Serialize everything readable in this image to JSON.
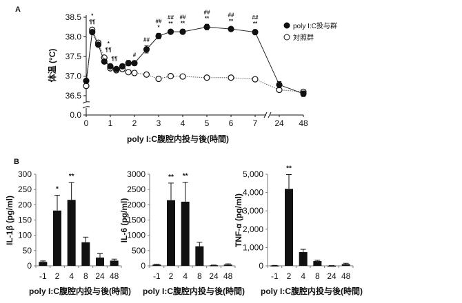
{
  "panel_labels": [
    "A",
    "B"
  ],
  "chart_data": [
    {
      "type": "line",
      "panel": "A",
      "ylabel": "体温 (°C)",
      "xlabel": "poly I:C腹腔内投与後(時間)",
      "ylim": [
        36.5,
        38.5
      ],
      "y_ticks": [
        "38.5",
        "38.0",
        "37.5",
        "37.0",
        "36.5",
        "0.0"
      ],
      "x_ticks": [
        "0",
        "1",
        "2",
        "3",
        "4",
        "5",
        "6",
        "7",
        "24",
        "48"
      ],
      "y_axis_break": true,
      "x_axis_break_between": [
        "7",
        "24"
      ],
      "legend_position": "top-right",
      "grid": false,
      "x": [
        0,
        0.25,
        0.5,
        0.75,
        1,
        1.25,
        1.5,
        1.75,
        2,
        2.5,
        3,
        3.5,
        4,
        5,
        6,
        7,
        24,
        48
      ],
      "series": [
        {
          "name": "poly I:C投与群",
          "marker": "filled-circle",
          "line": "solid",
          "values": [
            36.88,
            38.12,
            37.8,
            37.37,
            37.25,
            37.18,
            37.25,
            37.33,
            37.33,
            37.68,
            38.02,
            38.13,
            38.13,
            38.25,
            38.2,
            38.12,
            36.78,
            36.55
          ],
          "errors": [
            0.03,
            0.05,
            0.05,
            0.04,
            0.04,
            0.05,
            0.06,
            0.07,
            0.06,
            0.09,
            0.07,
            0.05,
            0.06,
            0.07,
            0.05,
            0.06,
            0.08,
            0.07
          ]
        },
        {
          "name": "対照群",
          "marker": "open-circle",
          "line": "dotted",
          "values": [
            36.75,
            38.18,
            37.85,
            37.47,
            37.2,
            37.15,
            37.18,
            37.1,
            37.08,
            37.04,
            36.93,
            37.0,
            36.99,
            36.96,
            36.96,
            36.92,
            36.65,
            36.6
          ],
          "errors": [
            0.03,
            0.05,
            0.05,
            0.05,
            0.05,
            0.05,
            0.06,
            0.05,
            0.04,
            0.04,
            0.05,
            0.04,
            0.05,
            0.04,
            0.04,
            0.03,
            0.04,
            0.05
          ]
        }
      ],
      "annotations": [
        {
          "x": 0.25,
          "lines": [
            "*",
            "¶¶"
          ]
        },
        {
          "x": 0.75,
          "lines": [
            "*",
            "¶¶"
          ]
        },
        {
          "x": 1,
          "lines": [
            "¶¶"
          ]
        },
        {
          "x": 2,
          "lines": [
            "#"
          ]
        },
        {
          "x": 2.5,
          "lines": [
            "##"
          ]
        },
        {
          "x": 3,
          "lines": [
            "##",
            "*"
          ]
        },
        {
          "x": 3.5,
          "lines": [
            "##",
            "**"
          ]
        },
        {
          "x": 4,
          "lines": [
            "##",
            "**"
          ]
        },
        {
          "x": 5,
          "lines": [
            "##",
            "**"
          ]
        },
        {
          "x": 6,
          "lines": [
            "##",
            "**"
          ]
        },
        {
          "x": 7,
          "lines": [
            "##",
            "**"
          ]
        }
      ]
    },
    {
      "type": "bar",
      "panel": "B",
      "ylabel": "IL-1β (pg/ml)",
      "xlabel": "poly I:C腹腔内投与後(時間)",
      "categories": [
        "-1",
        "2",
        "4",
        "8",
        "24",
        "48"
      ],
      "values": [
        13,
        181,
        216,
        77,
        27,
        17
      ],
      "errors": [
        3,
        50,
        57,
        17,
        13,
        5
      ],
      "significance": [
        "",
        "*",
        "**",
        "",
        "",
        ""
      ],
      "ylim": [
        0,
        300
      ],
      "y_ticks": [
        "0",
        "50",
        "100",
        "150",
        "200",
        "250",
        "300"
      ]
    },
    {
      "type": "bar",
      "panel": "B",
      "ylabel": "IL-6 (pg/ml)",
      "xlabel": "poly I:C腹腔内投与後(時間)",
      "categories": [
        "-1",
        "2",
        "4",
        "8",
        "24",
        "48"
      ],
      "values": [
        40,
        2150,
        2100,
        640,
        20,
        40
      ],
      "errors": [
        10,
        560,
        640,
        130,
        5,
        25
      ],
      "significance": [
        "",
        "**",
        "**",
        "",
        "",
        ""
      ],
      "ylim": [
        0,
        3000
      ],
      "y_ticks": [
        "0",
        "500",
        "1000",
        "1500",
        "2000",
        "2500",
        "3000"
      ]
    },
    {
      "type": "bar",
      "panel": "B",
      "ylabel": "TNF-α (pg/ml)",
      "xlabel": "poly I:C腹腔内投与後(時間)",
      "categories": [
        "-1",
        "2",
        "4",
        "8",
        "24",
        "48"
      ],
      "values": [
        20,
        4200,
        750,
        260,
        10,
        90
      ],
      "errors": [
        5,
        780,
        150,
        40,
        5,
        50
      ],
      "significance": [
        "",
        "**",
        "",
        "",
        "",
        ""
      ],
      "ylim": [
        0,
        5000
      ],
      "y_ticks": [
        "0",
        "1,000",
        "2,000",
        "3,000",
        "4,000",
        "5,000"
      ]
    }
  ]
}
